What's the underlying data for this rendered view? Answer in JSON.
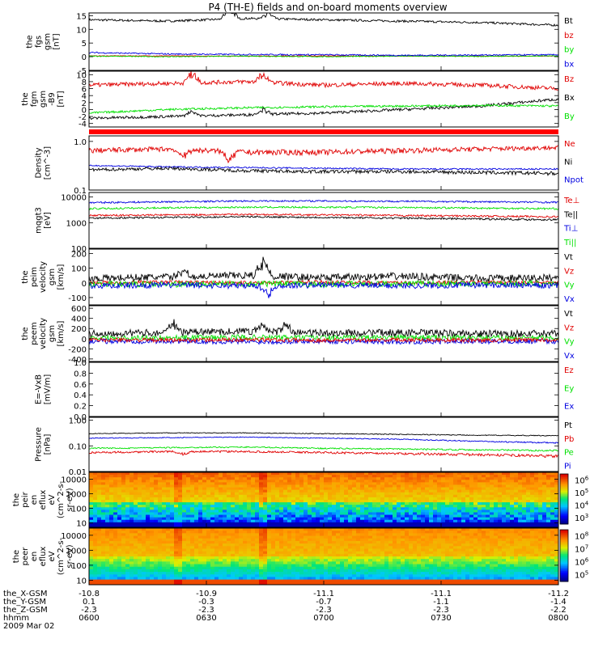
{
  "title": "P4 (TH-E) fields and on-board moments overview",
  "colors": {
    "black": "#000000",
    "red": "#e00000",
    "green": "#00e000",
    "blue": "#0000e0",
    "bar": "#ff0000"
  },
  "chart_data": {
    "type": "line",
    "time_labels": [
      "0600",
      "0630",
      "0700",
      "0730",
      "0800"
    ],
    "panels": [
      {
        "id": "fgs",
        "ylabel": [
          "the",
          "fgs",
          "gsm",
          "[nT]"
        ],
        "ylim": [
          -5,
          16
        ],
        "ticks": [
          "15",
          "10",
          "5",
          "0",
          "-5"
        ],
        "tick_values": [
          15,
          10,
          5,
          0,
          -5
        ],
        "legend": [
          {
            "text": "Bt",
            "color": "black"
          },
          {
            "text": "bz",
            "color": "red"
          },
          {
            "text": "by",
            "color": "green"
          },
          {
            "text": "bx",
            "color": "blue"
          }
        ],
        "series": [
          {
            "color": "black",
            "base": [
              13.5,
              13,
              14,
              13.5,
              13,
              12.5,
              11.5
            ],
            "noise": 0.4,
            "spikes": [
              [
                0.3,
                5
              ],
              [
                0.38,
                3
              ]
            ]
          },
          {
            "color": "red",
            "base": [
              0.3,
              0.3,
              0.2,
              0.3,
              0.2,
              0.2,
              0.2
            ],
            "noise": 0.1
          },
          {
            "color": "green",
            "base": [
              0.2,
              0,
              0.2,
              0,
              0.2,
              0.1,
              0.3
            ],
            "noise": 0.15
          },
          {
            "color": "blue",
            "base": [
              1.5,
              1,
              0.8,
              0.7,
              0.5,
              0.6,
              0.7
            ],
            "noise": 0.25
          }
        ]
      },
      {
        "id": "fgm",
        "ylabel": [
          "the",
          "fgm",
          "gsm",
          "-B9",
          "[nT]"
        ],
        "ylim": [
          -5,
          11
        ],
        "ticks": [
          "10",
          "8",
          "6",
          "4",
          "2",
          "0",
          "-2",
          "-4"
        ],
        "tick_values": [
          10,
          8,
          6,
          4,
          2,
          0,
          -2,
          -4
        ],
        "legend": [
          {
            "text": "Bz",
            "color": "red"
          },
          {
            "text": "Bx",
            "color": "black"
          },
          {
            "text": "By",
            "color": "green"
          }
        ],
        "series": [
          {
            "color": "red",
            "base": [
              7,
              7.5,
              8,
              7,
              7.5,
              7,
              6
            ],
            "noise": 0.6,
            "spikes": [
              [
                0.22,
                4
              ],
              [
                0.37,
                3
              ]
            ]
          },
          {
            "color": "black",
            "base": [
              -2.5,
              -2,
              -1.5,
              -1,
              0,
              1,
              3
            ],
            "noise": 0.4,
            "spikes": [
              [
                0.22,
                2
              ],
              [
                0.37,
                2
              ]
            ]
          },
          {
            "color": "green",
            "base": [
              -1,
              0,
              0.5,
              0.8,
              1,
              1.2,
              1
            ],
            "noise": 0.3
          }
        ]
      },
      {
        "id": "density",
        "ylabel": [
          "Density",
          "[cm^-3]"
        ],
        "ylim": [
          0.1,
          1.3
        ],
        "log": true,
        "ticks": [
          "1.0",
          "0.1"
        ],
        "tick_values": [
          1.0,
          0.1
        ],
        "legend": [
          {
            "text": "Ne",
            "color": "red"
          },
          {
            "text": "Ni",
            "color": "black"
          },
          {
            "text": "Npot",
            "color": "blue"
          }
        ],
        "series": [
          {
            "color": "red",
            "base": [
              0.65,
              0.7,
              0.6,
              0.6,
              0.65,
              0.7,
              0.75
            ],
            "noise": 0.08,
            "spikes": [
              [
                0.2,
                -0.35
              ],
              [
                0.3,
                -0.3
              ]
            ]
          },
          {
            "color": "blue",
            "base": [
              0.32,
              0.3,
              0.29,
              0.28,
              0.27,
              0.27,
              0.27
            ],
            "noise": 0.01
          },
          {
            "color": "black",
            "base": [
              0.26,
              0.28,
              0.25,
              0.24,
              0.24,
              0.23,
              0.22
            ],
            "noise": 0.02
          }
        ]
      },
      {
        "id": "temperature",
        "ylabel": [
          "mqgt3",
          "[eV]"
        ],
        "ylim": [
          100,
          15000
        ],
        "log": true,
        "ticks": [
          "10000",
          "1000",
          "100"
        ],
        "tick_values": [
          10000,
          1000,
          100
        ],
        "legend": [
          {
            "text": "Te⊥",
            "color": "red"
          },
          {
            "text": "Te||",
            "color": "black"
          },
          {
            "text": "Ti⊥",
            "color": "blue"
          },
          {
            "text": "Ti||",
            "color": "green"
          }
        ],
        "series": [
          {
            "color": "blue",
            "base": [
              6000,
              6500,
              7000,
              7000,
              6800,
              6500,
              6200
            ],
            "noise": 500
          },
          {
            "color": "green",
            "base": [
              3500,
              3800,
              4000,
              4000,
              3900,
              3700,
              3500
            ],
            "noise": 300
          },
          {
            "color": "red",
            "base": [
              1900,
              2000,
              2100,
              2000,
              1900,
              1800,
              1700
            ],
            "noise": 150
          },
          {
            "color": "black",
            "base": [
              1500,
              1600,
              1700,
              1600,
              1500,
              1400,
              1300
            ],
            "noise": 120
          }
        ]
      },
      {
        "id": "peim",
        "ylabel": [
          "the",
          "peim",
          "velocity",
          "gsm",
          "[km/s]"
        ],
        "ylim": [
          -150,
          230
        ],
        "ticks": [
          "200",
          "100",
          "0",
          "-100"
        ],
        "tick_values": [
          200,
          100,
          0,
          -100
        ],
        "legend": [
          {
            "text": "Vt",
            "color": "black"
          },
          {
            "text": "Vz",
            "color": "red"
          },
          {
            "text": "Vy",
            "color": "green"
          },
          {
            "text": "Vx",
            "color": "blue"
          }
        ],
        "series": [
          {
            "color": "black",
            "base": [
              30,
              40,
              50,
              35,
              45,
              30,
              35
            ],
            "noise": 25,
            "spikes": [
              [
                0.37,
                150
              ],
              [
                0.2,
                60
              ]
            ]
          },
          {
            "color": "red",
            "base": [
              0,
              5,
              0,
              5,
              0,
              5,
              0
            ],
            "noise": 12
          },
          {
            "color": "green",
            "base": [
              -5,
              -10,
              -5,
              -10,
              -5,
              -5,
              -5
            ],
            "noise": 20
          },
          {
            "color": "blue",
            "base": [
              -20,
              -15,
              -20,
              -15,
              -20,
              -15,
              -20
            ],
            "noise": 20,
            "spikes": [
              [
                0.38,
                -100
              ]
            ]
          }
        ]
      },
      {
        "id": "peem",
        "ylabel": [
          "the",
          "peem",
          "velocity",
          "gsm",
          "[km/s]"
        ],
        "ylim": [
          -450,
          650
        ],
        "ticks": [
          "600",
          "400",
          "200",
          "0",
          "-200",
          "-400"
        ],
        "tick_values": [
          600,
          400,
          200,
          0,
          -200,
          -400
        ],
        "legend": [
          {
            "text": "Vt",
            "color": "black"
          },
          {
            "text": "Vz",
            "color": "red"
          },
          {
            "text": "Vy",
            "color": "green"
          },
          {
            "text": "Vx",
            "color": "blue"
          }
        ],
        "series": [
          {
            "color": "blue",
            "base": [
              -50,
              -50,
              -60,
              -50,
              -60,
              -50,
              -50
            ],
            "noise": 50
          },
          {
            "color": "green",
            "base": [
              20,
              20,
              30,
              20,
              30,
              20,
              20
            ],
            "noise": 50
          },
          {
            "color": "red",
            "base": [
              -20,
              -30,
              -20,
              -30,
              -20,
              -30,
              -20
            ],
            "noise": 40
          },
          {
            "color": "black",
            "base": [
              100,
              120,
              150,
              110,
              120,
              100,
              100
            ],
            "noise": 70,
            "spikes": [
              [
                0.18,
                250
              ],
              [
                0.37,
                150
              ],
              [
                0.42,
                180
              ]
            ]
          }
        ]
      },
      {
        "id": "efield",
        "ylabel": [
          "E=-VxB",
          "[mV/m]"
        ],
        "ylim": [
          0,
          1.0
        ],
        "ticks": [
          "1.0",
          "0.8",
          "0.6",
          "0.4",
          "0.2",
          "0.0"
        ],
        "tick_values": [
          1.0,
          0.8,
          0.6,
          0.4,
          0.2,
          0.0
        ],
        "legend": [
          {
            "text": "Ez",
            "color": "red"
          },
          {
            "text": "Ey",
            "color": "green"
          },
          {
            "text": "Ex",
            "color": "blue"
          }
        ],
        "series": []
      },
      {
        "id": "pressure",
        "ylabel": [
          "Pressure",
          "[nPa]"
        ],
        "ylim": [
          0.01,
          1.3
        ],
        "log": true,
        "ticks": [
          "1.00",
          "0.10",
          "0.01"
        ],
        "tick_values": [
          1.0,
          0.1,
          0.01
        ],
        "legend": [
          {
            "text": "Pt",
            "color": "black"
          },
          {
            "text": "Pb",
            "color": "red"
          },
          {
            "text": "Pe",
            "color": "green"
          },
          {
            "text": "Pi",
            "color": "blue"
          }
        ],
        "series": [
          {
            "color": "black",
            "base": [
              0.3,
              0.32,
              0.32,
              0.3,
              0.28,
              0.26,
              0.25
            ],
            "noise": 0.01
          },
          {
            "color": "blue",
            "base": [
              0.2,
              0.21,
              0.22,
              0.2,
              0.18,
              0.15,
              0.13
            ],
            "noise": 0.008
          },
          {
            "color": "green",
            "base": [
              0.08,
              0.085,
              0.09,
              0.08,
              0.075,
              0.07,
              0.065
            ],
            "noise": 0.005
          },
          {
            "color": "red",
            "base": [
              0.055,
              0.06,
              0.06,
              0.055,
              0.05,
              0.045,
              0.04
            ],
            "noise": 0.005,
            "spikes": [
              [
                0.2,
                -0.02
              ]
            ]
          }
        ]
      },
      {
        "id": "peir",
        "type": "heatmap",
        "ylabel": [
          "the",
          "peir",
          "en",
          "eflux",
          "eV",
          "(cm^2-s-",
          "sr-eV)"
        ],
        "ylim": [
          5,
          30000
        ],
        "log": true,
        "ticks": [
          "10000",
          "1000",
          "100",
          "10"
        ],
        "tick_values": [
          10000,
          1000,
          100,
          10
        ],
        "colorbar_ticks": [
          "10^6",
          "10^5",
          "10^4",
          "10^3"
        ],
        "colorbar_tick_values": [
          1000000,
          100000,
          10000,
          1000
        ],
        "colorbar_range": [
          300,
          3000000
        ]
      },
      {
        "id": "peer",
        "type": "heatmap",
        "ylabel": [
          "the",
          "peer",
          "en",
          "eflux",
          "eV",
          "(cm^2-s-",
          "sr-eV)"
        ],
        "ylim": [
          5,
          30000
        ],
        "log": true,
        "ticks": [
          "10000",
          "1000",
          "100",
          "10"
        ],
        "tick_values": [
          10000,
          1000,
          100,
          10
        ],
        "colorbar_ticks": [
          "10^8",
          "10^7",
          "10^6",
          "10^5"
        ],
        "colorbar_tick_values": [
          100000000,
          10000000,
          1000000,
          100000
        ],
        "colorbar_range": [
          30000,
          300000000
        ]
      }
    ],
    "orbit_rows": [
      {
        "label": "the_X-GSM",
        "values": [
          "-10.8",
          "-10.9",
          "-11.1",
          "-11.1",
          "-11.2"
        ]
      },
      {
        "label": "the_Y-GSM",
        "values": [
          "0.1",
          "-0.3",
          "-0.7",
          "-1.1",
          "-1.4"
        ]
      },
      {
        "label": "the_Z-GSM",
        "values": [
          "-2.3",
          "-2.3",
          "-2.3",
          "-2.3",
          "-2.2"
        ]
      },
      {
        "label": "hhmm",
        "values": [
          "0600",
          "0630",
          "0700",
          "0730",
          "0800"
        ]
      }
    ],
    "date": "2009 Mar 02"
  }
}
